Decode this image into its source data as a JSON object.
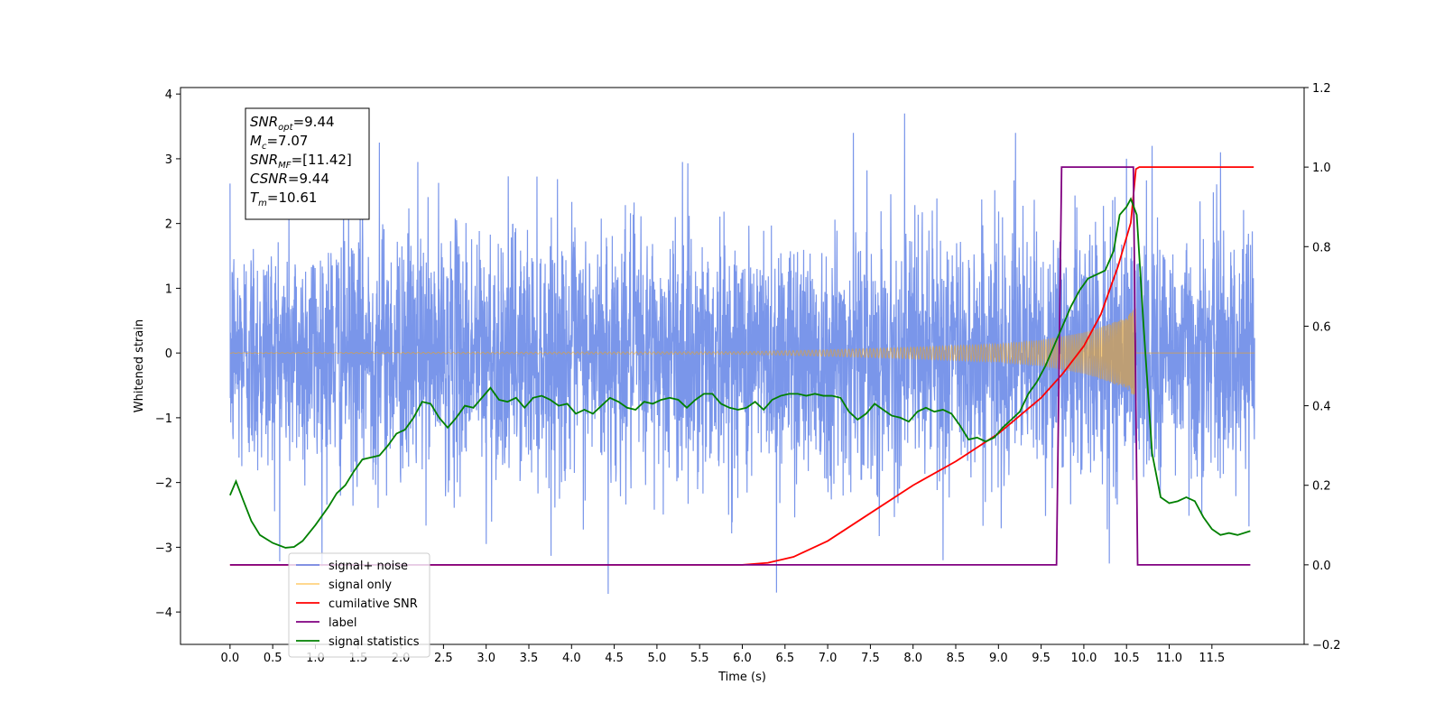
{
  "chart_data": {
    "type": "line",
    "xlabel": "Time (s)",
    "ylabel_left": "Whitened strain",
    "ylabel_right": "",
    "xlim": [
      -0.58,
      12.58
    ],
    "ylim_left": [
      -4.5,
      4.1
    ],
    "ylim_right": [
      -0.2,
      1.2
    ],
    "x_ticks": [
      "0.0",
      "0.5",
      "1.0",
      "1.5",
      "2.0",
      "2.5",
      "3.0",
      "3.5",
      "4.0",
      "4.5",
      "5.0",
      "5.5",
      "6.0",
      "6.5",
      "7.0",
      "7.5",
      "8.0",
      "8.5",
      "9.0",
      "9.5",
      "10.0",
      "10.5",
      "11.0",
      "11.5"
    ],
    "y_ticks_left": [
      "4",
      "3",
      "2",
      "1",
      "0",
      "−1",
      "−2",
      "−3",
      "−4"
    ],
    "y_ticks_right": [
      "1.2",
      "1.0",
      "0.8",
      "0.6",
      "0.4",
      "0.2",
      "0.0",
      "−0.2"
    ],
    "grid": false,
    "legend_position": "lower-left",
    "annotation": {
      "lines": [
        {
          "main": "SNR",
          "sub": "opt",
          "value": "=9.44"
        },
        {
          "main": "M",
          "sub": "c",
          "value": "=7.07"
        },
        {
          "main": "SNR",
          "sub": "MF",
          "value": "=[11.42]"
        },
        {
          "main": "CSNR",
          "sub": "",
          "value": "=9.44"
        },
        {
          "main": "T",
          "sub": "m",
          "value": "=10.61"
        }
      ]
    },
    "series": [
      {
        "name": "signal+ noise",
        "axis": "left",
        "color": "#4169e1",
        "kind": "noise",
        "x_range": [
          0.0,
          12.0
        ],
        "sigma": 0.95,
        "peaks": [
          [
            1.75,
            3.25
          ],
          [
            2.2,
            2.95
          ],
          [
            3.0,
            -2.95
          ],
          [
            4.43,
            -3.72
          ],
          [
            5.3,
            2.95
          ],
          [
            6.4,
            -3.7
          ],
          [
            7.3,
            3.4
          ],
          [
            7.9,
            3.7
          ],
          [
            8.35,
            -3.2
          ],
          [
            9.2,
            3.4
          ],
          [
            10.5,
            3.0
          ],
          [
            10.8,
            3.2
          ],
          [
            11.6,
            3.1
          ],
          [
            10.3,
            -3.25
          ]
        ]
      },
      {
        "name": "signal only",
        "axis": "left",
        "color": "#ffa500",
        "kind": "chirp",
        "x_range": [
          0.0,
          12.0
        ],
        "merger_time": 10.61,
        "amplitude_points": [
          [
            0.0,
            0.005
          ],
          [
            6.0,
            0.02
          ],
          [
            7.0,
            0.05
          ],
          [
            8.0,
            0.09
          ],
          [
            9.0,
            0.14
          ],
          [
            9.5,
            0.2
          ],
          [
            10.0,
            0.32
          ],
          [
            10.3,
            0.45
          ],
          [
            10.5,
            0.55
          ],
          [
            10.6,
            0.7
          ]
        ]
      },
      {
        "name": "cumilative SNR",
        "axis": "right",
        "color": "#ff0000",
        "x": [
          0.0,
          6.0,
          6.3,
          6.6,
          7.0,
          7.5,
          8.0,
          8.5,
          9.0,
          9.5,
          9.75,
          10.0,
          10.2,
          10.4,
          10.55,
          10.61,
          10.65,
          11.0,
          11.5,
          11.99
        ],
        "y": [
          0.0,
          0.0,
          0.005,
          0.02,
          0.06,
          0.13,
          0.2,
          0.26,
          0.33,
          0.42,
          0.48,
          0.55,
          0.63,
          0.75,
          0.86,
          0.995,
          1.0,
          1.0,
          1.0,
          1.0
        ]
      },
      {
        "name": "label",
        "axis": "right",
        "color": "#800080",
        "x": [
          0.0,
          9.68,
          9.74,
          10.58,
          10.63,
          11.95
        ],
        "y": [
          0.0,
          0.0,
          1.0,
          1.0,
          0.0,
          0.0
        ]
      },
      {
        "name": "signal statistics",
        "axis": "right",
        "color": "#008000",
        "x": [
          0.0,
          0.07,
          0.15,
          0.25,
          0.35,
          0.5,
          0.65,
          0.75,
          0.85,
          1.0,
          1.15,
          1.25,
          1.35,
          1.45,
          1.55,
          1.65,
          1.75,
          1.85,
          1.95,
          2.05,
          2.15,
          2.25,
          2.35,
          2.45,
          2.55,
          2.65,
          2.75,
          2.85,
          2.95,
          3.05,
          3.15,
          3.25,
          3.35,
          3.45,
          3.55,
          3.65,
          3.75,
          3.85,
          3.95,
          4.05,
          4.15,
          4.25,
          4.35,
          4.45,
          4.55,
          4.65,
          4.75,
          4.85,
          4.95,
          5.05,
          5.15,
          5.25,
          5.35,
          5.45,
          5.55,
          5.65,
          5.75,
          5.85,
          5.95,
          6.05,
          6.15,
          6.25,
          6.35,
          6.45,
          6.55,
          6.65,
          6.75,
          6.85,
          6.95,
          7.05,
          7.15,
          7.25,
          7.35,
          7.45,
          7.55,
          7.65,
          7.75,
          7.85,
          7.95,
          8.05,
          8.15,
          8.25,
          8.35,
          8.45,
          8.55,
          8.65,
          8.75,
          8.85,
          8.95,
          9.05,
          9.15,
          9.25,
          9.35,
          9.45,
          9.55,
          9.65,
          9.75,
          9.85,
          9.95,
          10.05,
          10.15,
          10.25,
          10.35,
          10.42,
          10.5,
          10.55,
          10.62,
          10.7,
          10.8,
          10.9,
          11.0,
          11.1,
          11.2,
          11.3,
          11.4,
          11.5,
          11.6,
          11.7,
          11.8,
          11.95
        ],
        "y": [
          0.175,
          0.21,
          0.165,
          0.11,
          0.075,
          0.055,
          0.043,
          0.045,
          0.06,
          0.1,
          0.145,
          0.18,
          0.2,
          0.235,
          0.265,
          0.27,
          0.275,
          0.3,
          0.33,
          0.34,
          0.37,
          0.41,
          0.405,
          0.37,
          0.345,
          0.37,
          0.4,
          0.395,
          0.42,
          0.445,
          0.415,
          0.41,
          0.42,
          0.395,
          0.42,
          0.425,
          0.415,
          0.4,
          0.405,
          0.38,
          0.39,
          0.38,
          0.4,
          0.42,
          0.41,
          0.395,
          0.39,
          0.41,
          0.405,
          0.415,
          0.42,
          0.415,
          0.395,
          0.415,
          0.43,
          0.43,
          0.405,
          0.395,
          0.39,
          0.395,
          0.41,
          0.39,
          0.415,
          0.425,
          0.43,
          0.43,
          0.425,
          0.43,
          0.425,
          0.425,
          0.42,
          0.385,
          0.365,
          0.38,
          0.405,
          0.39,
          0.375,
          0.37,
          0.36,
          0.385,
          0.395,
          0.385,
          0.39,
          0.38,
          0.35,
          0.315,
          0.32,
          0.31,
          0.32,
          0.345,
          0.365,
          0.385,
          0.43,
          0.46,
          0.5,
          0.55,
          0.6,
          0.65,
          0.69,
          0.72,
          0.73,
          0.74,
          0.79,
          0.88,
          0.9,
          0.92,
          0.88,
          0.6,
          0.28,
          0.17,
          0.155,
          0.16,
          0.17,
          0.16,
          0.12,
          0.09,
          0.075,
          0.08,
          0.075,
          0.085
        ]
      }
    ]
  }
}
